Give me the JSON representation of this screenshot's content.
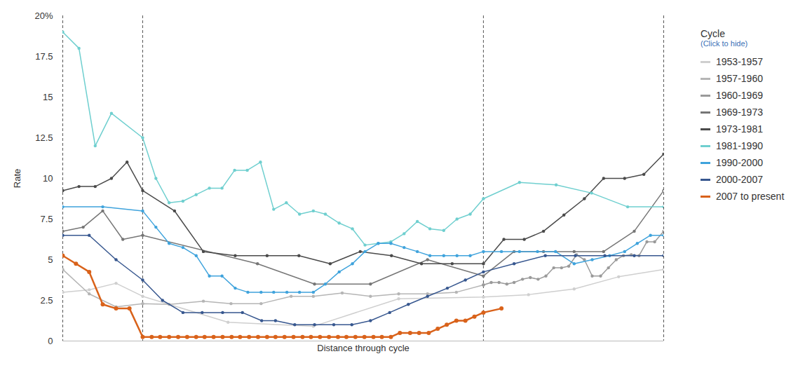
{
  "chart_data": {
    "type": "line",
    "x_label": "Distance through cycle",
    "y_label": "Rate",
    "xlim": [
      0,
      1
    ],
    "ylim": [
      0,
      20
    ],
    "yticks": [
      0,
      2.5,
      5,
      7.5,
      10,
      12.5,
      15,
      17.5,
      {
        "value": 20,
        "label": "20%"
      }
    ],
    "tick_labels": "y",
    "grid": false,
    "marker": "circle",
    "legend": "right",
    "legend_title": "Cycle",
    "legend_note": "(Click to hide)",
    "cycle_markers_x": [
      0,
      0.133,
      0.7,
      1
    ],
    "series": [
      {
        "name": "1953-1957",
        "color": "#cfcfcf",
        "x": [
          0,
          0.044,
          0.0887,
          0.133,
          0.275,
          0.417,
          0.559,
          0.7,
          0.775,
          0.851,
          0.925,
          1
        ],
        "values": [
          3.0,
          3.15,
          3.55,
          2.75,
          1.15,
          0.9,
          2.6,
          2.7,
          2.85,
          3.2,
          3.95,
          4.4
        ]
      },
      {
        "name": "1957-1960",
        "color": "#b5b5b5",
        "x": [
          0,
          0.044,
          0.0887,
          0.133,
          0.177,
          0.234,
          0.28,
          0.33,
          0.38,
          0.417,
          0.465,
          0.512,
          0.559,
          0.607,
          0.655,
          0.7
        ],
        "values": [
          4.4,
          2.9,
          2.1,
          2.3,
          2.25,
          2.45,
          2.3,
          2.3,
          2.75,
          2.75,
          2.95,
          2.75,
          2.9,
          2.9,
          3.0,
          3.45
        ]
      },
      {
        "name": "1960-1969",
        "color": "#9a9a9a",
        "x": [
          0.7,
          0.713,
          0.726,
          0.739,
          0.751,
          0.765,
          0.778,
          0.791,
          0.804,
          0.817,
          0.83,
          0.842,
          0.855,
          0.868,
          0.881,
          0.895,
          0.908,
          0.921,
          0.933,
          0.946,
          0.959,
          0.972,
          0.985,
          1
        ],
        "values": [
          3.45,
          3.6,
          3.6,
          3.5,
          3.6,
          3.8,
          3.9,
          3.8,
          4.0,
          4.5,
          4.5,
          4.6,
          5.3,
          5.0,
          4.0,
          4.0,
          4.5,
          5.0,
          5.25,
          5.3,
          5.25,
          6.1,
          6.1,
          6.75
        ]
      },
      {
        "name": "1969-1973",
        "color": "#767676",
        "x": [
          0,
          0.034,
          0.0665,
          0.1,
          0.133,
          0.324,
          0.419,
          0.512,
          0.607,
          0.7,
          0.751,
          0.8,
          0.851,
          0.9,
          0.951,
          1
        ],
        "values": [
          6.75,
          7.0,
          8.0,
          6.25,
          6.5,
          4.75,
          3.5,
          3.5,
          5.0,
          4.0,
          5.5,
          5.5,
          5.5,
          5.5,
          6.75,
          9.25
        ]
      },
      {
        "name": "1973-1981",
        "color": "#4a4a4a",
        "x": [
          0,
          0.027,
          0.054,
          0.081,
          0.107,
          0.133,
          0.186,
          0.234,
          0.287,
          0.34,
          0.393,
          0.445,
          0.495,
          0.547,
          0.597,
          0.648,
          0.7,
          0.734,
          0.768,
          0.8,
          0.834,
          0.868,
          0.9,
          0.935,
          0.967,
          1
        ],
        "values": [
          9.25,
          9.5,
          9.5,
          10.0,
          11.0,
          9.25,
          8.0,
          5.5,
          5.25,
          5.25,
          5.25,
          4.75,
          5.5,
          5.25,
          4.75,
          4.75,
          4.75,
          6.25,
          6.25,
          6.75,
          7.75,
          8.75,
          10.0,
          10.0,
          10.25,
          11.5
        ]
      },
      {
        "name": "1981-1990",
        "color": "#6fcfcf",
        "x": [
          0,
          0.027,
          0.054,
          0.081,
          0.133,
          0.155,
          0.177,
          0.2,
          0.222,
          0.244,
          0.265,
          0.286,
          0.307,
          0.329,
          0.351,
          0.372,
          0.394,
          0.417,
          0.437,
          0.46,
          0.482,
          0.503,
          0.525,
          0.546,
          0.568,
          0.59,
          0.611,
          0.634,
          0.656,
          0.678,
          0.7,
          0.76,
          0.821,
          0.88,
          0.94,
          1
        ],
        "values": [
          19.0,
          18.0,
          12.0,
          14.0,
          12.5,
          10.0,
          8.5,
          8.6,
          9.0,
          9.4,
          9.4,
          10.5,
          10.5,
          11.0,
          8.1,
          8.5,
          7.8,
          8.0,
          7.8,
          7.25,
          6.9,
          5.9,
          6.0,
          6.1,
          6.6,
          7.35,
          6.9,
          6.8,
          7.5,
          7.8,
          8.75,
          9.75,
          9.6,
          9.1,
          8.25,
          8.25
        ]
      },
      {
        "name": "1990-2000",
        "color": "#3fa3dc",
        "x": [
          0,
          0.0665,
          0.133,
          0.155,
          0.177,
          0.2,
          0.222,
          0.244,
          0.265,
          0.287,
          0.308,
          0.33,
          0.351,
          0.373,
          0.394,
          0.417,
          0.437,
          0.46,
          0.482,
          0.503,
          0.525,
          0.546,
          0.568,
          0.59,
          0.611,
          0.634,
          0.656,
          0.678,
          0.7,
          0.73,
          0.76,
          0.79,
          0.82,
          0.851,
          0.881,
          0.91,
          0.935,
          0.956,
          0.978,
          1
        ],
        "values": [
          8.25,
          8.25,
          8.0,
          7.0,
          6.0,
          5.75,
          5.25,
          4.0,
          4.0,
          3.25,
          3.0,
          3.0,
          3.0,
          3.0,
          3.0,
          3.0,
          3.5,
          4.25,
          4.75,
          5.5,
          6.0,
          6.0,
          5.75,
          5.5,
          5.25,
          5.25,
          5.25,
          5.25,
          5.5,
          5.5,
          5.5,
          5.5,
          5.5,
          4.75,
          5.0,
          5.25,
          5.5,
          6.0,
          6.5,
          6.5
        ]
      },
      {
        "name": "2000-2007",
        "color": "#37578f",
        "x": [
          0,
          0.044,
          0.0887,
          0.133,
          0.166,
          0.2,
          0.232,
          0.266,
          0.299,
          0.331,
          0.354,
          0.386,
          0.419,
          0.451,
          0.481,
          0.512,
          0.544,
          0.575,
          0.607,
          0.64,
          0.67,
          0.7,
          0.751,
          0.803,
          0.853,
          0.902,
          0.951,
          1
        ],
        "values": [
          6.5,
          6.5,
          5.0,
          3.75,
          2.5,
          1.75,
          1.75,
          1.75,
          1.75,
          1.25,
          1.25,
          1.0,
          1.0,
          1.0,
          1.0,
          1.25,
          1.75,
          2.25,
          2.75,
          3.25,
          3.75,
          4.25,
          4.75,
          5.25,
          5.25,
          5.25,
          5.25,
          5.25
        ]
      },
      {
        "name": "2007 to present",
        "color": "#d9621a",
        "x": [
          0,
          0.022,
          0.044,
          0.0665,
          0.0887,
          0.111,
          0.133,
          0.148,
          0.162,
          0.177,
          0.192,
          0.207,
          0.222,
          0.236,
          0.251,
          0.266,
          0.281,
          0.295,
          0.31,
          0.325,
          0.34,
          0.354,
          0.369,
          0.384,
          0.399,
          0.413,
          0.428,
          0.443,
          0.458,
          0.472,
          0.487,
          0.502,
          0.517,
          0.531,
          0.546,
          0.561,
          0.578,
          0.593,
          0.609,
          0.624,
          0.639,
          0.655,
          0.67,
          0.685,
          0.7,
          0.73
        ],
        "values": [
          5.25,
          4.75,
          4.25,
          2.25,
          2.0,
          2.0,
          0.25,
          0.25,
          0.25,
          0.25,
          0.25,
          0.25,
          0.25,
          0.25,
          0.25,
          0.25,
          0.25,
          0.25,
          0.25,
          0.25,
          0.25,
          0.25,
          0.25,
          0.25,
          0.25,
          0.25,
          0.25,
          0.25,
          0.25,
          0.25,
          0.25,
          0.25,
          0.25,
          0.25,
          0.25,
          0.5,
          0.5,
          0.5,
          0.5,
          0.75,
          1.0,
          1.25,
          1.25,
          1.5,
          1.75,
          2.0
        ]
      }
    ]
  }
}
